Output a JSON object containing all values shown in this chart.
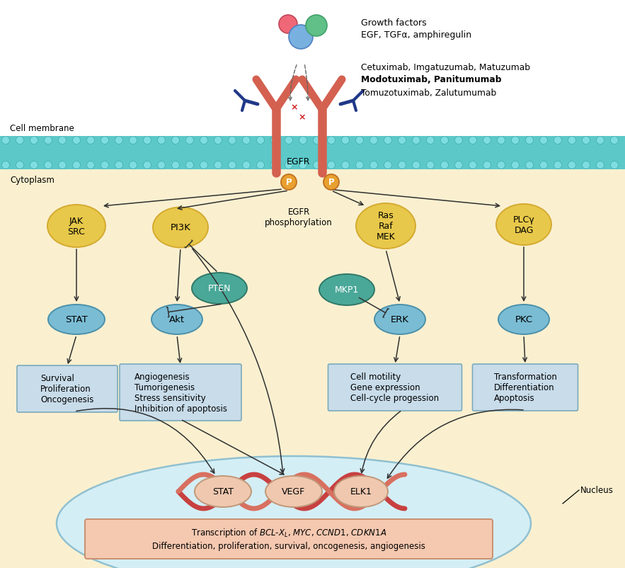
{
  "bg_color": "#FFFFFF",
  "cytoplasm_color": "#FAF0D0",
  "membrane_teal": "#5CC8C8",
  "membrane_circle_fill": "#7DDDE0",
  "membrane_circle_edge": "#40AAAA",
  "nucleus_color": "#D4EEF5",
  "nucleus_edge": "#90C0D0",
  "cell_membrane_label": "Cell membrane",
  "cytoplasm_label": "Cytoplasm",
  "nucleus_label": "Nucleus",
  "growth_factors_label": "Growth factors",
  "egf_label": "EGF, TGFα, amphiregulin",
  "antibodies_line1": "Cetuximab, Imgatuzumab, Matuzumab",
  "antibodies_line2": "Modotuximab, Panitumumab",
  "antibodies_line3": "Tomuzotuximab, Zalutumumab",
  "egfr_label": "EGFR",
  "egfr_phospho_label": "EGFR\nphosphorylation",
  "jak_src_label": "JAK\nSRC",
  "pi3k_label": "PI3K",
  "pten_label": "PTEN",
  "ras_raf_mek_label": "Ras\nRaf\nMEK",
  "mkp1_label": "MKP1",
  "plcg_dag_label": "PLCγ\nDAG",
  "stat_label": "STAT",
  "akt_label": "Akt",
  "erk_label": "ERK",
  "pkc_label": "PKC",
  "box1_lines": [
    "Survival",
    "Proliferation",
    "Oncogenesis"
  ],
  "box2_lines": [
    "Angiogenesis",
    "Tumorigenesis",
    "Stress sensitivity",
    "Inhibition of apoptosis"
  ],
  "box3_lines": [
    "Cell motility",
    "Gene expression",
    "Cell-cycle progession"
  ],
  "box4_lines": [
    "Transformation",
    "Differentiation",
    "Apoptosis"
  ],
  "nucleus_stat": "STAT",
  "nucleus_vegf": "VEGF",
  "nucleus_elk1": "ELK1",
  "transcription_line2": "Differentiation, proliferation, survival, oncogenesis, angiogenesis",
  "yellow_color": "#D4AA30",
  "yellow_fill": "#E8C84A",
  "teal_fill": "#4AA898",
  "teal_edge": "#307868",
  "blue_fill": "#7ABCD4",
  "blue_edge": "#4A90AA",
  "pink_fill": "#F0C8B0",
  "pink_edge": "#C09878",
  "box_fill": "#C8DCEA",
  "box_edge": "#7AAABB",
  "trans_fill": "#F5C8B0",
  "trans_edge": "#C89070",
  "p_fill": "#E8A030",
  "p_edge": "#C07020",
  "egfr_color": "#D46050",
  "dna_color1": "#C84040",
  "dna_color2": "#D87060",
  "arrow_color": "#303030",
  "red_x_color": "#CC2020",
  "ab_color": "#203888"
}
